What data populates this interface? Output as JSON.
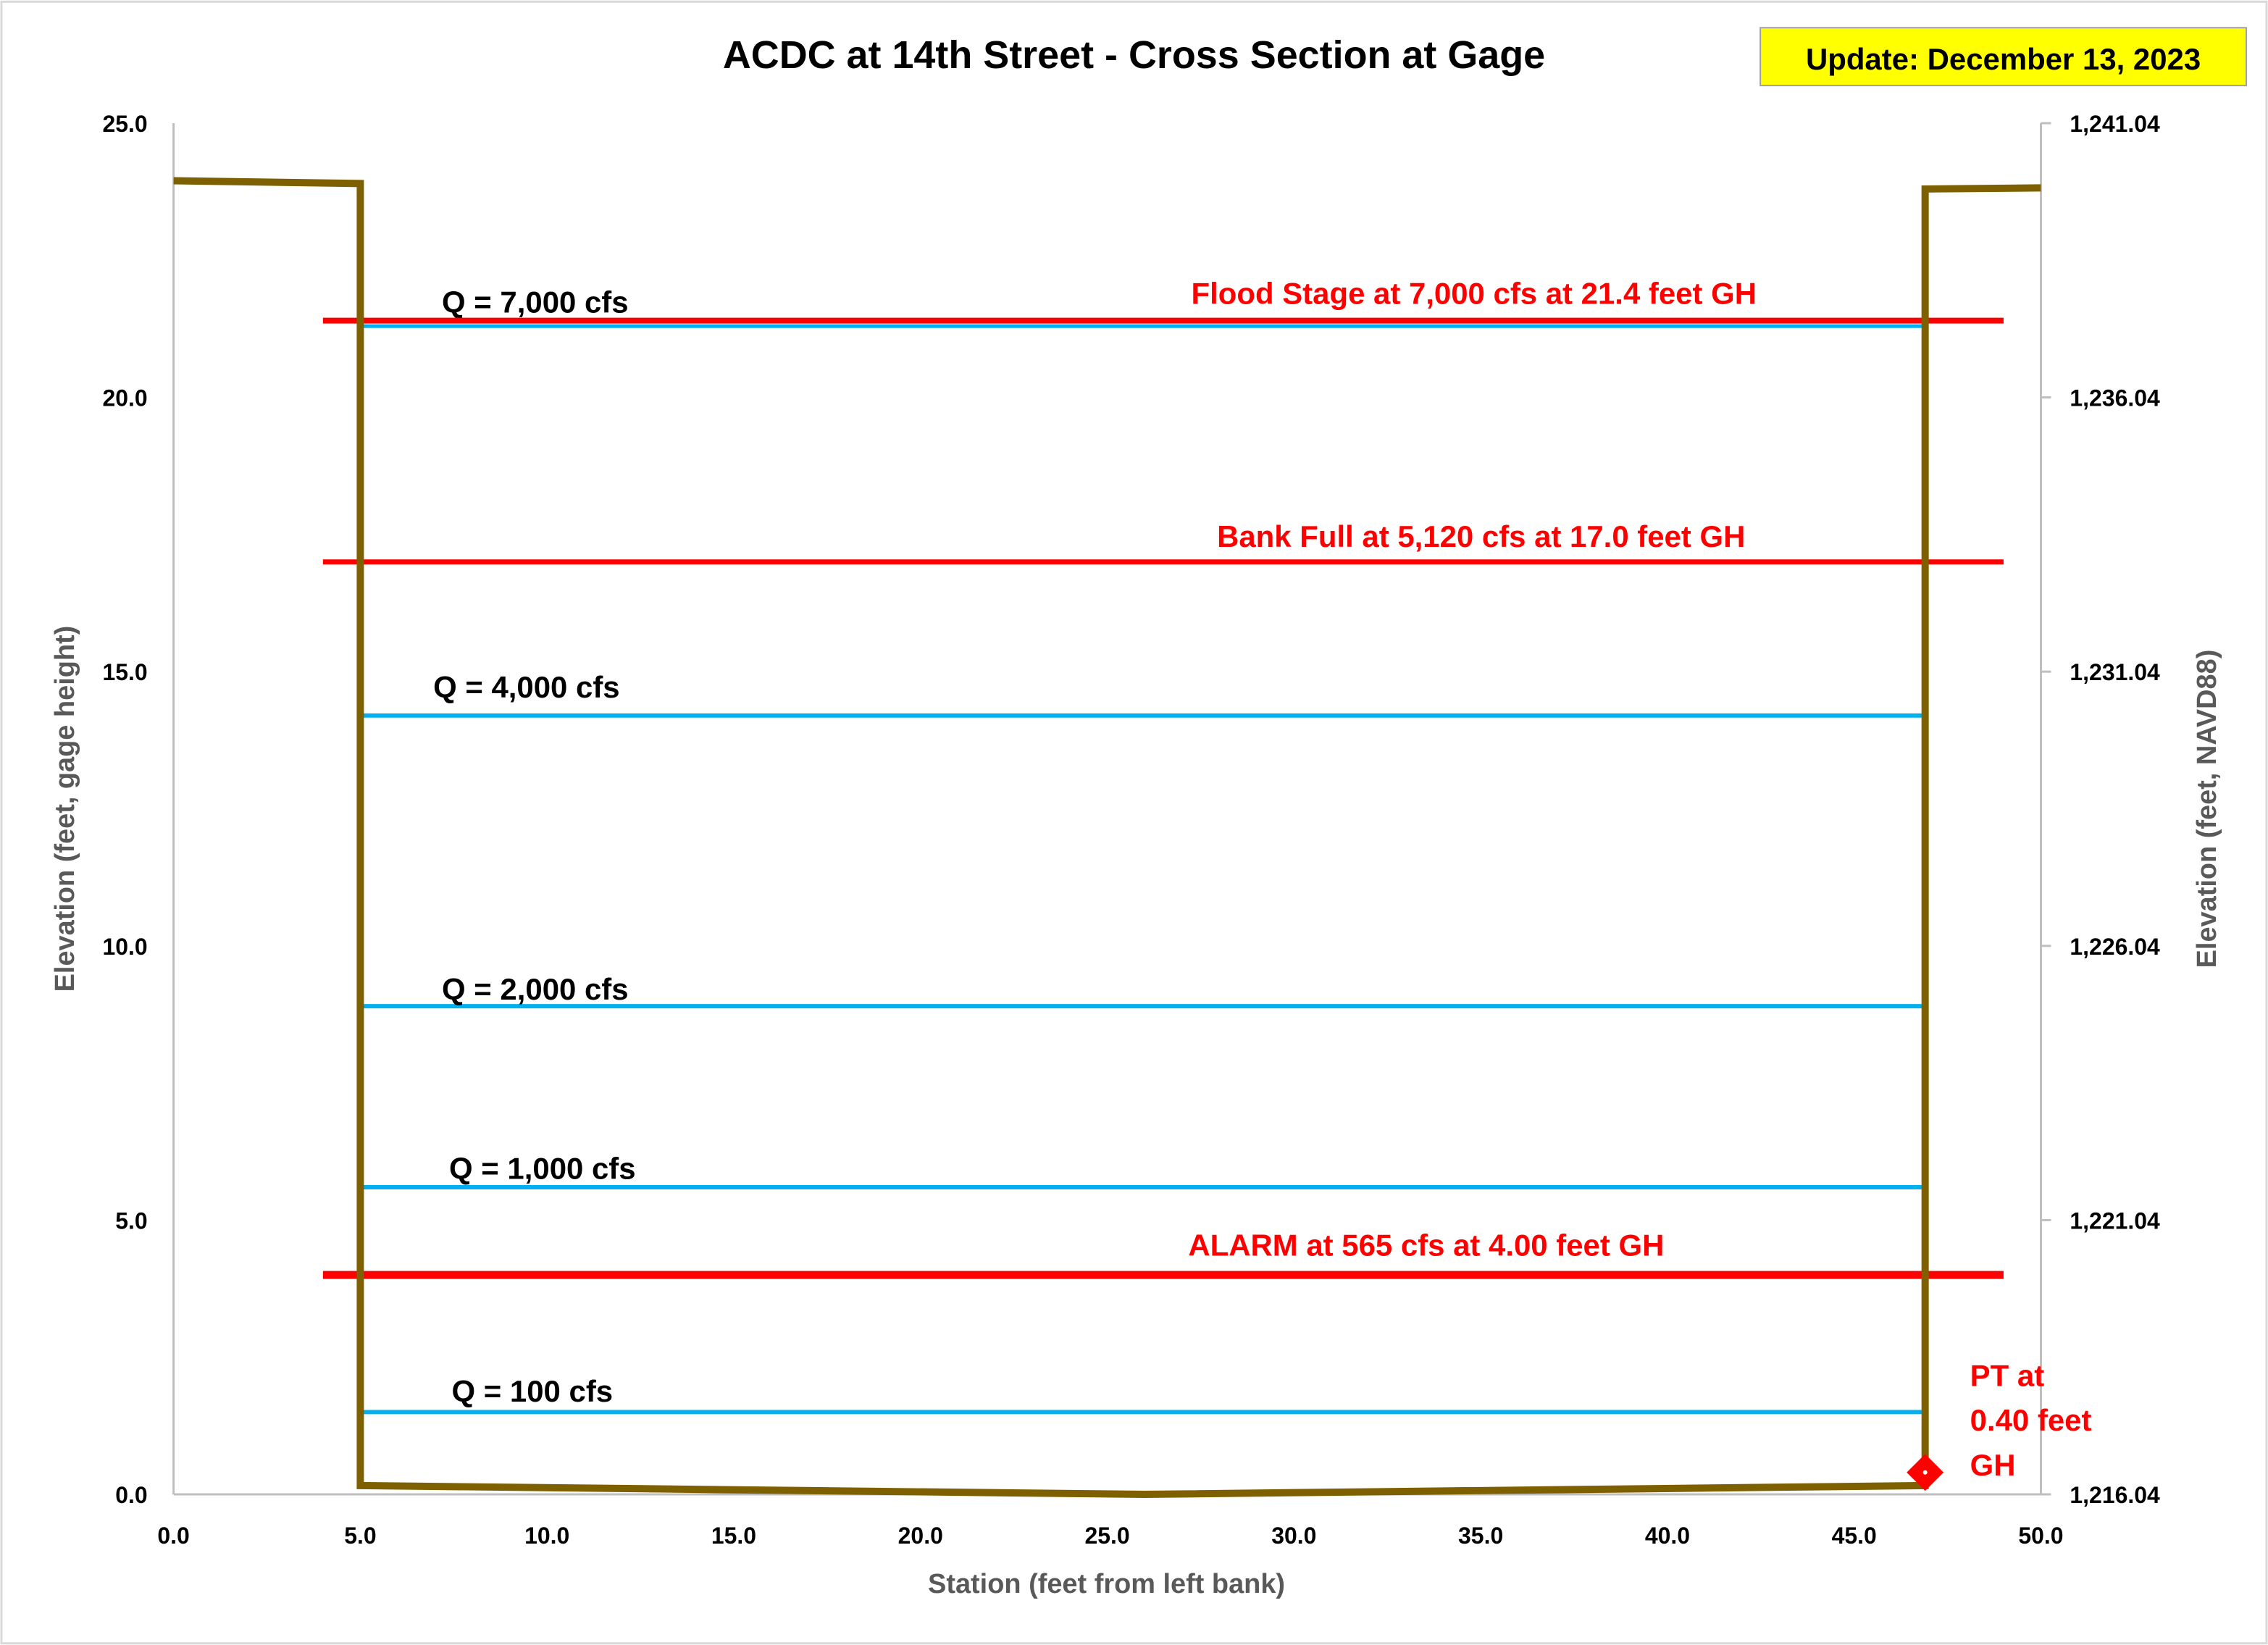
{
  "chart_data": {
    "type": "line",
    "title": "ACDC at 14th Street - Cross Section at Gage",
    "badge": "Update: December 13, 2023",
    "x_label": "Station (feet from left bank)",
    "y_label": "Elevation (feet, gage height)",
    "y2_label": "Elevation (feet, NAVD88)",
    "xlim": [
      0,
      50
    ],
    "xticks": [
      {
        "value": 0,
        "label": "0.0"
      },
      {
        "value": 5,
        "label": "5.0"
      },
      {
        "value": 10,
        "label": "10.0"
      },
      {
        "value": 15,
        "label": "15.0"
      },
      {
        "value": 20,
        "label": "20.0"
      },
      {
        "value": 25,
        "label": "25.0"
      },
      {
        "value": 30,
        "label": "30.0"
      },
      {
        "value": 35,
        "label": "35.0"
      },
      {
        "value": 40,
        "label": "40.0"
      },
      {
        "value": 45,
        "label": "45.0"
      },
      {
        "value": 50,
        "label": "50.0"
      }
    ],
    "ylim": [
      0,
      25
    ],
    "yticks": [
      {
        "value": 0,
        "label": "0.0"
      },
      {
        "value": 5,
        "label": "5.0"
      },
      {
        "value": 10,
        "label": "10.0"
      },
      {
        "value": 15,
        "label": "15.0"
      },
      {
        "value": 20,
        "label": "20.0"
      },
      {
        "value": 25,
        "label": "25.0"
      }
    ],
    "y2lim": [
      1216.04,
      1241.04
    ],
    "y2ticks": [
      {
        "value": 1216.04,
        "label": "1,216.04"
      },
      {
        "value": 1221.04,
        "label": "1,221.04"
      },
      {
        "value": 1226.04,
        "label": "1,226.04"
      },
      {
        "value": 1231.04,
        "label": "1,231.04"
      },
      {
        "value": 1236.04,
        "label": "1,236.04"
      },
      {
        "value": 1241.04,
        "label": "1,241.04"
      }
    ],
    "series": [
      {
        "color": "#7F6000",
        "x": [
          0,
          5,
          5,
          26,
          46.9,
          46.9,
          50
        ],
        "values": [
          23.95,
          23.9,
          0.16,
          0,
          0.16,
          23.8,
          23.82
        ]
      },
      {
        "color": "#00B0F0",
        "x": [
          5,
          46.9
        ],
        "values": [
          21.3,
          21.3
        ],
        "label": "Q = 7,000 cfs",
        "label_color": "#000000"
      },
      {
        "color": "#FF0000",
        "x": [
          4,
          49
        ],
        "values": [
          21.4,
          21.4
        ],
        "label": "Flood Stage at 7,000 cfs at 21.4 feet GH",
        "label_color": "#FF0000"
      },
      {
        "color": "#FF0000",
        "x": [
          4,
          49
        ],
        "values": [
          17.0,
          17.0
        ],
        "label": "Bank Full at 5,120 cfs at 17.0 feet GH",
        "label_color": "#FF0000"
      },
      {
        "color": "#00B0F0",
        "x": [
          5,
          46.9
        ],
        "values": [
          14.2,
          14.2
        ],
        "label": "Q = 4,000 cfs",
        "label_color": "#000000"
      },
      {
        "color": "#00B0F0",
        "x": [
          5,
          46.9
        ],
        "values": [
          8.9,
          8.9
        ],
        "label": "Q = 2,000 cfs",
        "label_color": "#000000"
      },
      {
        "color": "#00B0F0",
        "x": [
          5,
          46.9
        ],
        "values": [
          5.6,
          5.6
        ],
        "label": "Q = 1,000 cfs",
        "label_color": "#000000"
      },
      {
        "color": "#FF0000",
        "x": [
          4,
          49
        ],
        "values": [
          4.0,
          4.0
        ],
        "label": "ALARM at 565 cfs at 4.00 feet GH",
        "label_color": "#FF0000"
      },
      {
        "color": "#00B0F0",
        "x": [
          5,
          46.9
        ],
        "values": [
          1.5,
          1.5
        ],
        "label": "Q = 100 cfs",
        "label_color": "#000000"
      },
      {
        "color": "#FF0000",
        "marker": "diamond",
        "x": [
          46.9
        ],
        "values": [
          0.4
        ],
        "label_lines": [
          "PT at",
          "0.40 feet",
          "GH"
        ],
        "label_color": "#FF0000"
      }
    ]
  }
}
